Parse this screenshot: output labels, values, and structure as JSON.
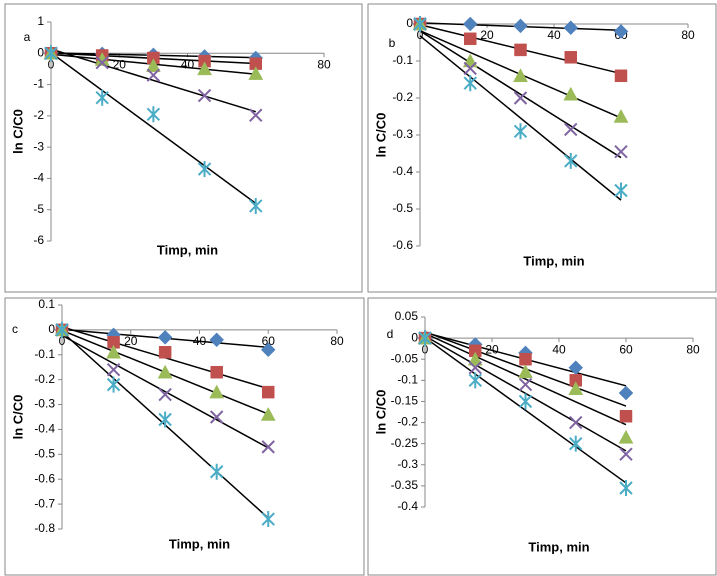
{
  "chart_data": [
    {
      "type": "scatter",
      "panel_label": "a",
      "x_label": "Timp, min",
      "y_label": "ln C/C0",
      "trendline": true,
      "x": [
        0,
        15,
        30,
        45,
        60
      ],
      "xlim": [
        0,
        80
      ],
      "xticks": [
        0,
        20,
        40,
        60,
        80
      ],
      "ylim": [
        -6,
        1
      ],
      "yticks": [
        -6,
        -5,
        -4,
        -3,
        -2,
        -1,
        0,
        1
      ],
      "series": [
        {
          "color": "#4f81bd",
          "marker": "diamond",
          "values": [
            0,
            -0.02,
            -0.05,
            -0.1,
            -0.15
          ]
        },
        {
          "color": "#c0504d",
          "marker": "square",
          "values": [
            0,
            -0.07,
            -0.15,
            -0.25,
            -0.33
          ]
        },
        {
          "color": "#9bbb59",
          "marker": "triangle",
          "values": [
            0,
            -0.2,
            -0.4,
            -0.5,
            -0.65
          ]
        },
        {
          "color": "#8064a2",
          "marker": "cross",
          "values": [
            0,
            -0.3,
            -0.7,
            -1.35,
            -1.98
          ]
        },
        {
          "color": "#4bacc6",
          "marker": "star",
          "values": [
            0,
            -1.42,
            -1.95,
            -3.7,
            -4.88
          ]
        }
      ]
    },
    {
      "type": "scatter",
      "panel_label": "b",
      "x_label": "Timp, min",
      "y_label": "ln C/C0",
      "trendline": true,
      "x": [
        0,
        15,
        30,
        45,
        60
      ],
      "xlim": [
        0,
        80
      ],
      "xticks": [
        0,
        20,
        40,
        60,
        80
      ],
      "ylim": [
        -0.6,
        0
      ],
      "yticks": [
        -0.6,
        -0.5,
        -0.4,
        -0.3,
        -0.2,
        -0.1,
        0
      ],
      "series": [
        {
          "color": "#4f81bd",
          "marker": "diamond",
          "values": [
            0,
            0,
            -0.005,
            -0.01,
            -0.02
          ]
        },
        {
          "color": "#c0504d",
          "marker": "square",
          "values": [
            0,
            -0.04,
            -0.07,
            -0.09,
            -0.14
          ]
        },
        {
          "color": "#9bbb59",
          "marker": "triangle",
          "values": [
            0,
            -0.1,
            -0.14,
            -0.19,
            -0.25
          ]
        },
        {
          "color": "#8064a2",
          "marker": "cross",
          "values": [
            0,
            -0.12,
            -0.2,
            -0.285,
            -0.345
          ]
        },
        {
          "color": "#4bacc6",
          "marker": "star",
          "values": [
            0,
            -0.16,
            -0.29,
            -0.37,
            -0.45
          ]
        }
      ]
    },
    {
      "type": "scatter",
      "panel_label": "c",
      "x_label": "Timp, min",
      "y_label": "ln C/C0",
      "trendline": true,
      "x": [
        0,
        15,
        30,
        45,
        60
      ],
      "xlim": [
        0,
        80
      ],
      "xticks": [
        0,
        20,
        40,
        60,
        80
      ],
      "ylim": [
        -0.8,
        0.1
      ],
      "yticks": [
        -0.8,
        -0.7,
        -0.6,
        -0.5,
        -0.4,
        -0.3,
        -0.2,
        -0.1,
        0,
        0.1
      ],
      "series": [
        {
          "color": "#4f81bd",
          "marker": "diamond",
          "values": [
            0,
            -0.02,
            -0.03,
            -0.04,
            -0.08
          ]
        },
        {
          "color": "#c0504d",
          "marker": "square",
          "values": [
            0,
            -0.05,
            -0.09,
            -0.17,
            -0.25
          ]
        },
        {
          "color": "#9bbb59",
          "marker": "triangle",
          "values": [
            0,
            -0.09,
            -0.17,
            -0.25,
            -0.34
          ]
        },
        {
          "color": "#8064a2",
          "marker": "cross",
          "values": [
            0,
            -0.16,
            -0.26,
            -0.35,
            -0.47
          ]
        },
        {
          "color": "#4bacc6",
          "marker": "star",
          "values": [
            0,
            -0.22,
            -0.36,
            -0.57,
            -0.76
          ]
        }
      ]
    },
    {
      "type": "scatter",
      "panel_label": "d",
      "x_label": "Timp, min",
      "y_label": "ln C/C0",
      "trendline": true,
      "x": [
        0,
        15,
        30,
        45,
        60
      ],
      "xlim": [
        0,
        80
      ],
      "xticks": [
        0,
        20,
        40,
        60,
        80
      ],
      "ylim": [
        -0.4,
        0.05
      ],
      "yticks": [
        -0.4,
        -0.35,
        -0.3,
        -0.25,
        -0.2,
        -0.15,
        -0.1,
        -0.05,
        0,
        0.05
      ],
      "series": [
        {
          "color": "#4f81bd",
          "marker": "diamond",
          "values": [
            0,
            -0.015,
            -0.035,
            -0.07,
            -0.13
          ]
        },
        {
          "color": "#c0504d",
          "marker": "square",
          "values": [
            0,
            -0.03,
            -0.05,
            -0.1,
            -0.185
          ]
        },
        {
          "color": "#9bbb59",
          "marker": "triangle",
          "values": [
            0,
            -0.05,
            -0.08,
            -0.12,
            -0.235
          ]
        },
        {
          "color": "#8064a2",
          "marker": "cross",
          "values": [
            0,
            -0.07,
            -0.11,
            -0.2,
            -0.275
          ]
        },
        {
          "color": "#4bacc6",
          "marker": "star",
          "values": [
            0,
            -0.1,
            -0.15,
            -0.25,
            -0.355
          ]
        }
      ]
    }
  ]
}
